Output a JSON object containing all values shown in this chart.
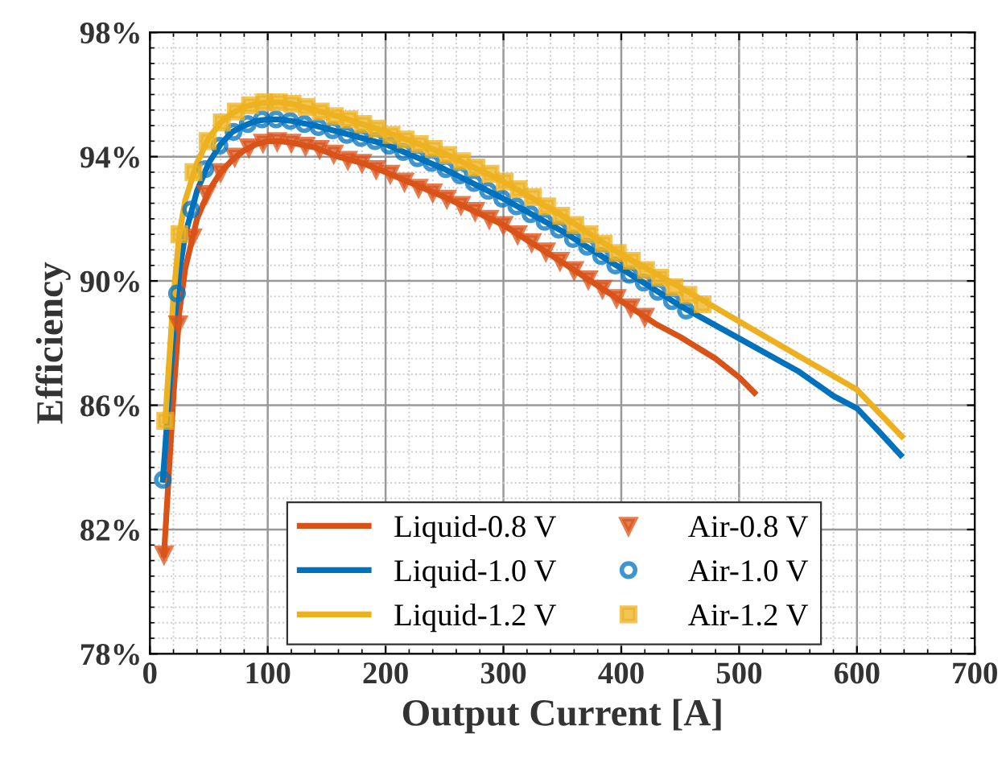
{
  "chart_data": {
    "type": "line",
    "xlabel": "Output Current [A]",
    "ylabel": "Efficiency",
    "xlim": [
      0,
      700
    ],
    "xticks": [
      0,
      100,
      200,
      300,
      400,
      500,
      600,
      700
    ],
    "ylim": [
      78,
      98
    ],
    "yticks": [
      {
        "value": 78,
        "label": "78%"
      },
      {
        "value": 82,
        "label": "82%"
      },
      {
        "value": 86,
        "label": "86%"
      },
      {
        "value": 90,
        "label": "90%"
      },
      {
        "value": 94,
        "label": "94%"
      },
      {
        "value": 98,
        "label": "98%"
      }
    ],
    "grid": true,
    "legend": "bottom",
    "series": [
      {
        "name": "Liquid-0.8 V",
        "color": "#d95319",
        "marker": "none",
        "x": [
          12,
          20,
          25,
          30,
          40,
          50,
          60,
          70,
          80,
          90,
          100,
          110,
          120,
          140,
          160,
          180,
          200,
          250,
          300,
          350,
          400,
          430,
          450,
          480,
          500,
          513
        ],
        "values": [
          81.2,
          86.3,
          89.0,
          90.4,
          92.0,
          92.9,
          93.5,
          93.9,
          94.2,
          94.4,
          94.5,
          94.5,
          94.45,
          94.3,
          94.0,
          93.8,
          93.5,
          92.7,
          91.8,
          90.6,
          89.35,
          88.6,
          88.2,
          87.5,
          86.9,
          86.4
        ]
      },
      {
        "name": "Liquid-1.0 V",
        "color": "#0072bd",
        "marker": "none",
        "x": [
          11,
          20,
          25,
          30,
          40,
          50,
          60,
          70,
          80,
          90,
          100,
          110,
          120,
          140,
          160,
          180,
          200,
          250,
          300,
          350,
          400,
          450,
          500,
          550,
          580,
          600,
          620,
          637
        ],
        "values": [
          83.6,
          88.3,
          90.3,
          91.5,
          92.9,
          93.8,
          94.4,
          94.8,
          95.0,
          95.15,
          95.2,
          95.2,
          95.15,
          95.0,
          94.8,
          94.6,
          94.4,
          93.6,
          92.65,
          91.6,
          90.4,
          89.2,
          88.15,
          87.1,
          86.3,
          85.9,
          85.1,
          84.4
        ]
      },
      {
        "name": "Liquid-1.2 V",
        "color": "#edb120",
        "marker": "none",
        "x": [
          13,
          20,
          25,
          30,
          40,
          50,
          60,
          70,
          80,
          90,
          100,
          110,
          120,
          140,
          160,
          180,
          200,
          250,
          300,
          350,
          400,
          450,
          500,
          550,
          600,
          638
        ],
        "values": [
          85.5,
          89.5,
          91.5,
          92.6,
          93.8,
          94.6,
          95.1,
          95.4,
          95.6,
          95.7,
          95.75,
          95.75,
          95.7,
          95.5,
          95.3,
          95.05,
          94.8,
          94.1,
          93.2,
          92.1,
          90.85,
          89.8,
          88.7,
          87.6,
          86.5,
          85.0
        ]
      },
      {
        "name": "Air-0.8 V",
        "type": "scatter",
        "color": "#d95319",
        "marker": "triangle",
        "x": [
          12,
          24,
          36,
          48,
          60,
          72,
          84,
          96,
          108,
          120,
          132,
          144,
          156,
          168,
          180,
          192,
          204,
          216,
          228,
          240,
          252,
          264,
          276,
          288,
          300,
          312,
          324,
          336,
          348,
          360,
          372,
          384,
          396,
          408,
          420
        ],
        "values": [
          81.2,
          88.6,
          91.4,
          92.8,
          93.5,
          94.0,
          94.3,
          94.45,
          94.5,
          94.45,
          94.35,
          94.25,
          94.1,
          93.9,
          93.8,
          93.6,
          93.45,
          93.2,
          93.0,
          92.85,
          92.65,
          92.45,
          92.25,
          92.0,
          91.8,
          91.5,
          91.25,
          90.95,
          90.65,
          90.35,
          90.05,
          89.75,
          89.45,
          89.15,
          88.85
        ]
      },
      {
        "name": "Air-1.0 V",
        "type": "scatter",
        "color": "#0072bd",
        "marker": "circle",
        "x": [
          11,
          23,
          35,
          47,
          59,
          71,
          83,
          95,
          107,
          119,
          131,
          143,
          155,
          167,
          179,
          191,
          203,
          215,
          227,
          239,
          251,
          263,
          275,
          287,
          299,
          311,
          323,
          335,
          347,
          359,
          371,
          383,
          395,
          407,
          419,
          431,
          443,
          455
        ],
        "values": [
          83.6,
          89.6,
          92.3,
          93.6,
          94.35,
          94.8,
          95.05,
          95.2,
          95.2,
          95.15,
          95.05,
          94.95,
          94.85,
          94.7,
          94.6,
          94.5,
          94.35,
          94.15,
          93.95,
          93.8,
          93.6,
          93.4,
          93.15,
          92.9,
          92.65,
          92.4,
          92.15,
          91.9,
          91.65,
          91.35,
          91.1,
          90.8,
          90.5,
          90.2,
          89.95,
          89.65,
          89.35,
          89.05
        ]
      },
      {
        "name": "Air-1.2 V",
        "type": "scatter",
        "color": "#edb120",
        "marker": "square",
        "x": [
          13,
          25,
          37,
          49,
          61,
          73,
          85,
          97,
          109,
          121,
          133,
          145,
          157,
          169,
          181,
          193,
          205,
          217,
          229,
          241,
          253,
          265,
          277,
          289,
          301,
          313,
          325,
          337,
          349,
          361,
          373,
          385,
          397,
          409,
          421,
          433,
          445,
          457,
          469
        ],
        "values": [
          85.5,
          91.5,
          93.5,
          94.5,
          95.1,
          95.45,
          95.65,
          95.75,
          95.75,
          95.7,
          95.6,
          95.45,
          95.3,
          95.2,
          95.05,
          94.9,
          94.7,
          94.55,
          94.4,
          94.25,
          94.05,
          93.85,
          93.65,
          93.45,
          93.2,
          92.95,
          92.7,
          92.4,
          92.1,
          91.8,
          91.5,
          91.2,
          90.9,
          90.65,
          90.35,
          90.1,
          89.8,
          89.55,
          89.25
        ]
      }
    ]
  }
}
